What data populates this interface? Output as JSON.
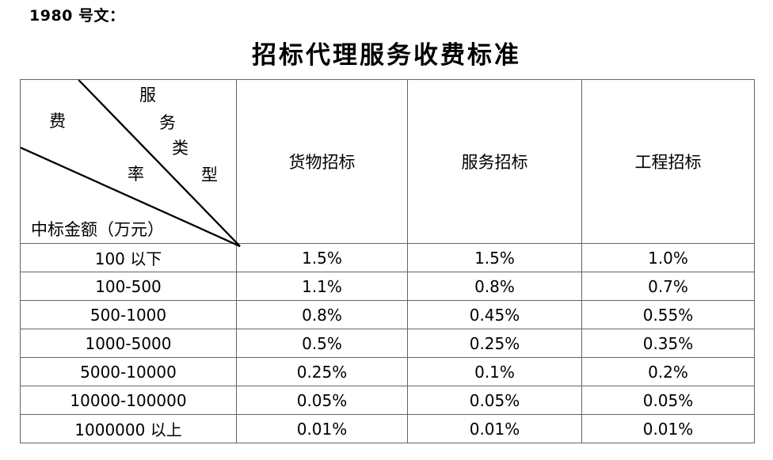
{
  "doc": {
    "ref": "1980 号文：",
    "title": "招标代理服务收费标准"
  },
  "table": {
    "corner": {
      "diagonal_label_top": "服务类型",
      "diagonal_label_middle": "费率",
      "chars": [
        "服",
        "务",
        "类",
        "型",
        "费",
        "率"
      ],
      "bottom_label": "中标金额（万元）"
    },
    "columns": [
      "货物招标",
      "服务招标",
      "工程招标"
    ],
    "rows": [
      {
        "range": "100 以下",
        "values": [
          "1.5%",
          "1.5%",
          "1.0%"
        ]
      },
      {
        "range": "100-500",
        "values": [
          "1.1%",
          "0.8%",
          "0.7%"
        ]
      },
      {
        "range": "500-1000",
        "values": [
          "0.8%",
          "0.45%",
          "0.55%"
        ]
      },
      {
        "range": "1000-5000",
        "values": [
          "0.5%",
          "0.25%",
          "0.35%"
        ]
      },
      {
        "range": "5000-10000",
        "values": [
          "0.25%",
          "0.1%",
          "0.2%"
        ]
      },
      {
        "range": "10000-100000",
        "values": [
          "0.05%",
          "0.05%",
          "0.05%"
        ]
      },
      {
        "range": "1000000 以上",
        "values": [
          "0.01%",
          "0.01%",
          "0.01%"
        ]
      }
    ]
  },
  "colors": {
    "text": "#000000",
    "grid_border": "#646464",
    "diagonal_line": "#000000",
    "background": "#ffffff"
  }
}
